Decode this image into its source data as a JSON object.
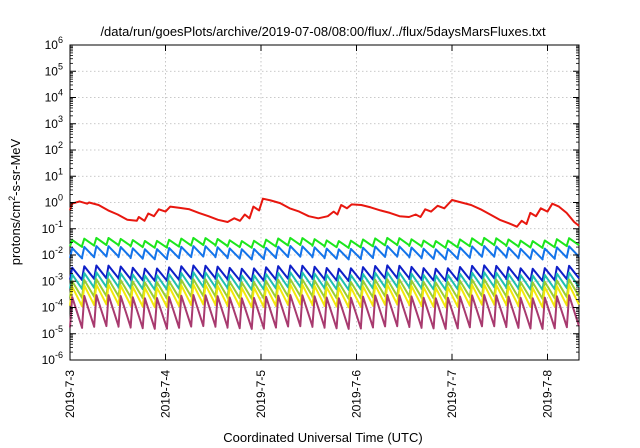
{
  "chart_data": {
    "type": "line",
    "title": "/data/run/goesPlots/archive/2019-07-08/08:00/flux/../flux/5daysMarsFluxes.txt",
    "xlabel": "Coordinated Universal Time (UTC)",
    "ylabel_main": "protons/cm",
    "ylabel_sup": "2",
    "ylabel_rest": "-s-sr-MeV",
    "y_scale": "log",
    "ylim_exp": [
      -6,
      6
    ],
    "y_ticks": [
      {
        "base": "10",
        "exp": "-6"
      },
      {
        "base": "10",
        "exp": "-5"
      },
      {
        "base": "10",
        "exp": "-4"
      },
      {
        "base": "10",
        "exp": "-3"
      },
      {
        "base": "10",
        "exp": "-2"
      },
      {
        "base": "10",
        "exp": "-1"
      },
      {
        "base": "10",
        "exp": "0"
      },
      {
        "base": "10",
        "exp": "1"
      },
      {
        "base": "10",
        "exp": "2"
      },
      {
        "base": "10",
        "exp": "3"
      },
      {
        "base": "10",
        "exp": "4"
      },
      {
        "base": "10",
        "exp": "5"
      },
      {
        "base": "10",
        "exp": "6"
      }
    ],
    "x_range_days": [
      0,
      5.33
    ],
    "x_ticks": [
      "2019-7-3",
      "2019-7-4",
      "2019-7-5",
      "2019-7-6",
      "2019-7-7",
      "2019-7-8"
    ],
    "grid": true,
    "legend": "none",
    "series": [
      {
        "color": "#e8170f",
        "points": [
          [
            0.0,
            0.5
          ],
          [
            0.02,
            0.9
          ],
          [
            0.1,
            1.1
          ],
          [
            0.18,
            0.9
          ],
          [
            0.2,
            1.0
          ],
          [
            0.3,
            0.8
          ],
          [
            0.4,
            0.5
          ],
          [
            0.5,
            0.35
          ],
          [
            0.6,
            0.22
          ],
          [
            0.7,
            0.2
          ],
          [
            0.72,
            0.28
          ],
          [
            0.78,
            0.2
          ],
          [
            0.82,
            0.38
          ],
          [
            0.88,
            0.3
          ],
          [
            0.93,
            0.55
          ],
          [
            1.0,
            0.45
          ],
          [
            1.05,
            0.7
          ],
          [
            1.15,
            0.62
          ],
          [
            1.25,
            0.55
          ],
          [
            1.35,
            0.4
          ],
          [
            1.45,
            0.3
          ],
          [
            1.55,
            0.22
          ],
          [
            1.65,
            0.18
          ],
          [
            1.72,
            0.25
          ],
          [
            1.78,
            0.2
          ],
          [
            1.83,
            0.35
          ],
          [
            1.88,
            0.25
          ],
          [
            1.92,
            0.7
          ],
          [
            1.98,
            0.5
          ],
          [
            2.02,
            1.4
          ],
          [
            2.1,
            1.2
          ],
          [
            2.2,
            0.95
          ],
          [
            2.3,
            0.6
          ],
          [
            2.4,
            0.45
          ],
          [
            2.5,
            0.3
          ],
          [
            2.6,
            0.25
          ],
          [
            2.7,
            0.3
          ],
          [
            2.76,
            0.45
          ],
          [
            2.8,
            0.35
          ],
          [
            2.84,
            0.8
          ],
          [
            2.9,
            0.6
          ],
          [
            2.95,
            0.85
          ],
          [
            3.05,
            0.8
          ],
          [
            3.15,
            0.65
          ],
          [
            3.25,
            0.5
          ],
          [
            3.35,
            0.4
          ],
          [
            3.45,
            0.3
          ],
          [
            3.55,
            0.28
          ],
          [
            3.62,
            0.35
          ],
          [
            3.67,
            0.28
          ],
          [
            3.72,
            0.55
          ],
          [
            3.78,
            0.45
          ],
          [
            3.85,
            0.75
          ],
          [
            3.92,
            0.6
          ],
          [
            4.0,
            1.25
          ],
          [
            4.1,
            1.0
          ],
          [
            4.2,
            0.8
          ],
          [
            4.3,
            0.55
          ],
          [
            4.4,
            0.35
          ],
          [
            4.5,
            0.22
          ],
          [
            4.6,
            0.16
          ],
          [
            4.68,
            0.12
          ],
          [
            4.73,
            0.2
          ],
          [
            4.78,
            0.15
          ],
          [
            4.82,
            0.4
          ],
          [
            4.88,
            0.3
          ],
          [
            4.93,
            0.6
          ],
          [
            5.0,
            0.45
          ],
          [
            5.05,
            0.9
          ],
          [
            5.12,
            0.7
          ],
          [
            5.2,
            0.4
          ],
          [
            5.28,
            0.18
          ],
          [
            5.33,
            0.13
          ]
        ]
      },
      {
        "color": "#1ce61c",
        "sawtooth": {
          "count": 42,
          "peak": 0.045,
          "trough": 0.022,
          "dip_day": 0.31
        }
      },
      {
        "color": "#1474ea",
        "sawtooth": {
          "count": 42,
          "peak": 0.022,
          "trough": 0.008,
          "dip_day": 0.31
        }
      },
      {
        "color": "#0e1fc8",
        "sawtooth": {
          "count": 42,
          "peak": 0.004,
          "trough": 0.0012,
          "dip_day": 0.31
        }
      },
      {
        "color": "#1fbfb0",
        "sawtooth": {
          "count": 42,
          "peak": 0.0022,
          "trough": 0.00055,
          "dip_day": 0.31
        }
      },
      {
        "color": "#9acd32",
        "sawtooth": {
          "count": 42,
          "peak": 0.0012,
          "trough": 0.00025,
          "dip_day": 0.31
        }
      },
      {
        "color": "#f2e80c",
        "sawtooth": {
          "count": 42,
          "peak": 0.00075,
          "trough": 0.00012,
          "dip_day": 0.31
        }
      },
      {
        "color": "#a83a6f",
        "sawtooth": {
          "count": 42,
          "peak": 0.0003,
          "trough": 1.8e-05,
          "dip_day": 0.31
        }
      }
    ]
  }
}
